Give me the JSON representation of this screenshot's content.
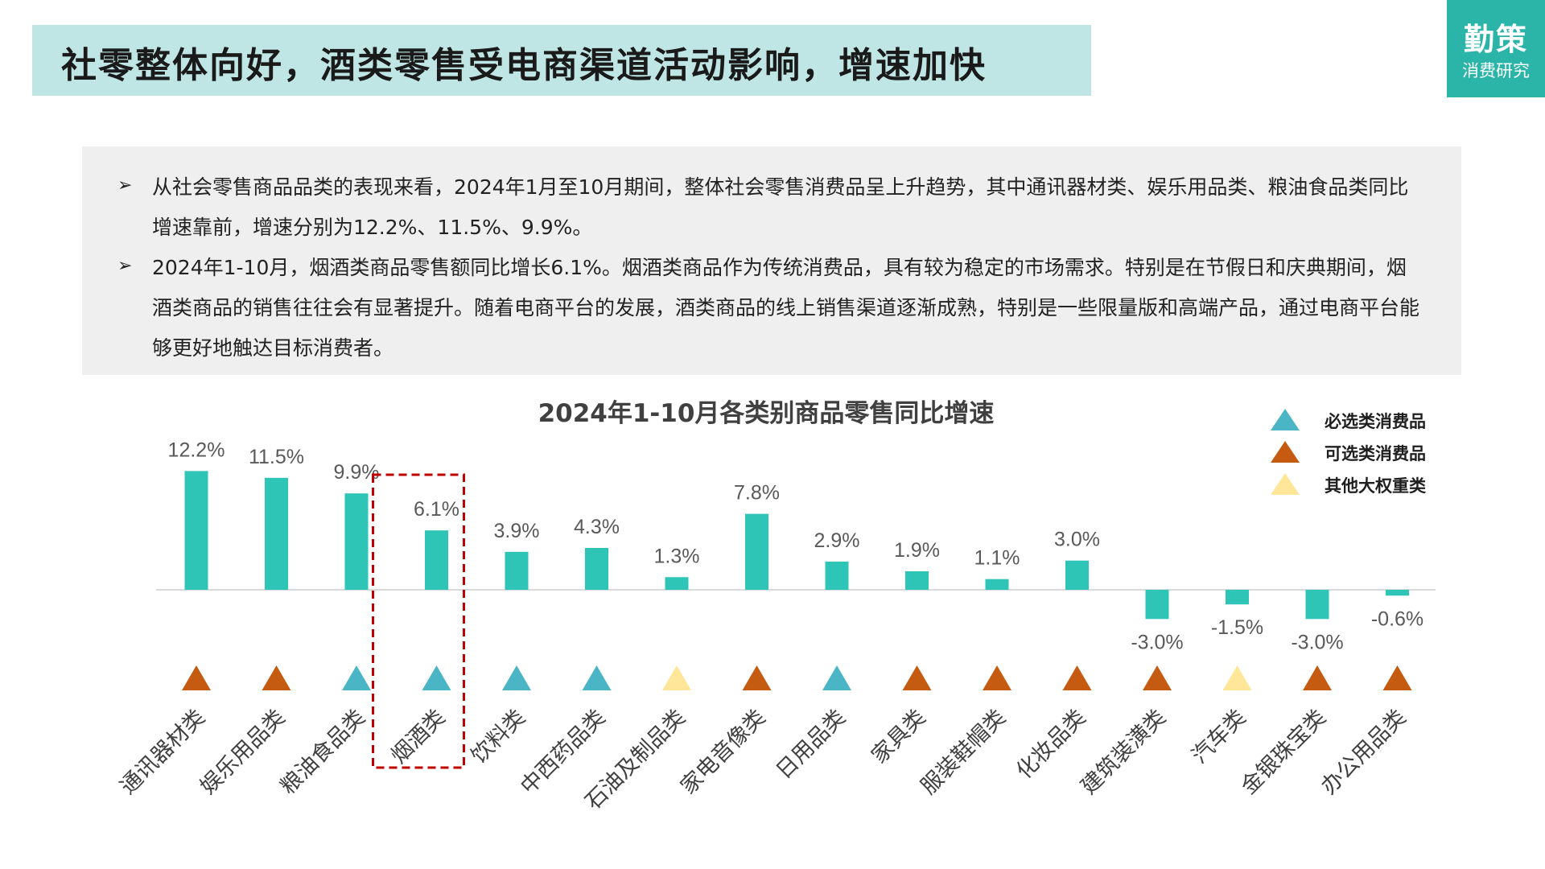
{
  "header": {
    "title": "社零整体向好，酒类零售受电商渠道活动影响，增速加快",
    "brand_name": "勤策",
    "brand_sub": "消费研究"
  },
  "notes": [
    "从社会零售商品品类的表现来看，2024年1月至10月期间，整体社会零售消费品呈上升趋势，其中通讯器材类、娱乐用品类、粮油食品类同比增速靠前，增速分别为12.2%、11.5%、9.9%。",
    "2024年1-10月，烟酒类商品零售额同比增长6.1%。烟酒类商品作为传统消费品，具有较为稳定的市场需求。特别是在节假日和庆典期间，烟酒类商品的销售往往会有显著提升。随着电商平台的发展，酒类商品的线上销售渠道逐渐成熟，特别是一些限量版和高端产品，通过电商平台能够更好地触达目标消费者。"
  ],
  "bullet_glyph": "➢",
  "colors": {
    "bar": "#2ec4b6",
    "essential": "#4ab5c4",
    "optional": "#c55a11",
    "other": "#ffe699",
    "highlight_box": "#c00000"
  },
  "chart_data": {
    "type": "bar",
    "title": "2024年1-10月各类别商品零售同比增速",
    "categories": [
      "通讯器材类",
      "娱乐用品类",
      "粮油食品类",
      "烟酒类",
      "饮料类",
      "中西药品类",
      "石油及制品类",
      "家电音像类",
      "日用品类",
      "家具类",
      "服装鞋帽类",
      "化妆品类",
      "建筑装潢类",
      "汽车类",
      "金银珠宝类",
      "办公用品类"
    ],
    "values": [
      12.2,
      11.5,
      9.9,
      6.1,
      3.9,
      4.3,
      1.3,
      7.8,
      2.9,
      1.9,
      1.1,
      3.0,
      -3.0,
      -1.5,
      -3.0,
      -0.6
    ],
    "value_labels": [
      "12.2%",
      "11.5%",
      "9.9%",
      "6.1%",
      "3.9%",
      "4.3%",
      "1.3%",
      "7.8%",
      "2.9%",
      "1.9%",
      "1.1%",
      "3.0%",
      "-3.0%",
      "-1.5%",
      "-3.0%",
      "-0.6%"
    ],
    "category_groups": [
      "optional",
      "optional",
      "essential",
      "essential",
      "essential",
      "essential",
      "other",
      "optional",
      "essential",
      "optional",
      "optional",
      "optional",
      "optional",
      "other",
      "optional",
      "optional"
    ],
    "legend": [
      {
        "key": "essential",
        "label": "必选类消费品"
      },
      {
        "key": "optional",
        "label": "可选类消费品"
      },
      {
        "key": "other",
        "label": "其他大权重类"
      }
    ],
    "legend_position": "top-right",
    "highlighted_category": "烟酒类",
    "grid": false
  }
}
